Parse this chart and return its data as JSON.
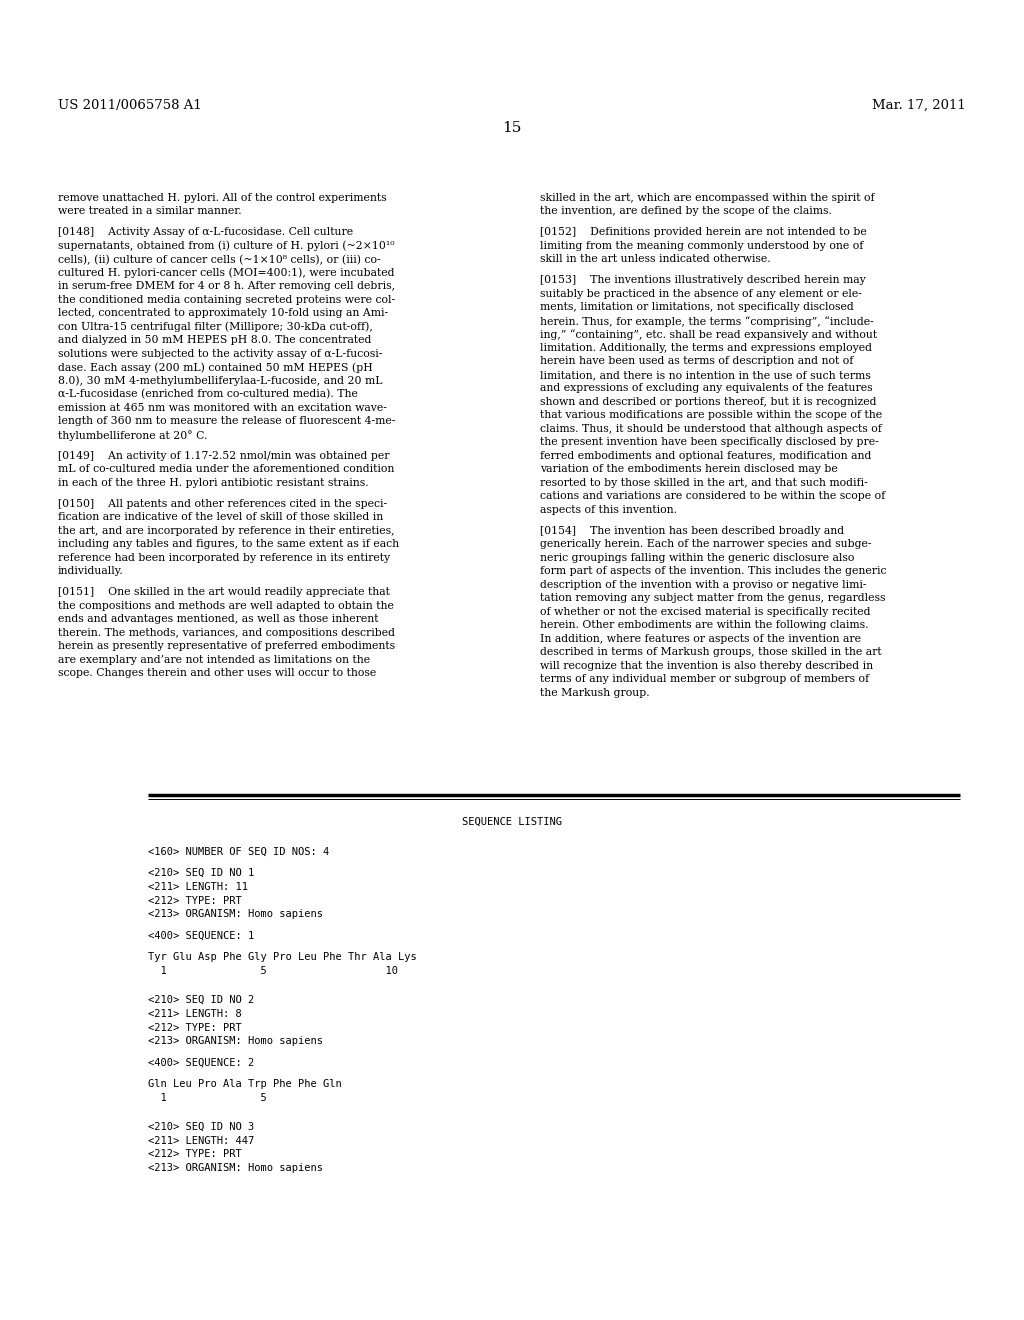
{
  "header_left": "US 2011/0065758 A1",
  "header_right": "Mar. 17, 2011",
  "page_number": "15",
  "background_color": "#ffffff",
  "text_color": "#000000",
  "body_text_left": [
    "remove unattached H. pylori. All of the control experiments",
    "were treated in a similar manner.",
    "",
    "[0148]    Activity Assay of α-L-fucosidase. Cell culture",
    "supernatants, obtained from (i) culture of H. pylori (~2×10¹⁰",
    "cells), (ii) culture of cancer cells (~1×10⁸ cells), or (iii) co-",
    "cultured H. pylori-cancer cells (MOI=400:1), were incubated",
    "in serum-free DMEM for 4 or 8 h. After removing cell debris,",
    "the conditioned media containing secreted proteins were col-",
    "lected, concentrated to approximately 10-fold using an Ami-",
    "con Ultra-15 centrifugal filter (Millipore; 30-kDa cut-off),",
    "and dialyzed in 50 mM HEPES pH 8.0. The concentrated",
    "solutions were subjected to the activity assay of α-L-fucosi-",
    "dase. Each assay (200 mL) contained 50 mM HEPES (pH",
    "8.0), 30 mM 4-methylumbelliferylaa-L-fucoside, and 20 mL",
    "α-L-fucosidase (enriched from co-cultured media). The",
    "emission at 465 nm was monitored with an excitation wave-",
    "length of 360 nm to measure the release of fluorescent 4-me-",
    "thylumbelliferone at 20° C.",
    "",
    "[0149]    An activity of 1.17-2.52 nmol/min was obtained per",
    "mL of co-cultured media under the aforementioned condition",
    "in each of the three H. pylori antibiotic resistant strains.",
    "",
    "[0150]    All patents and other references cited in the speci-",
    "fication are indicative of the level of skill of those skilled in",
    "the art, and are incorporated by reference in their entireties,",
    "including any tables and figures, to the same extent as if each",
    "reference had been incorporated by reference in its entirety",
    "individually.",
    "",
    "[0151]    One skilled in the art would readily appreciate that",
    "the compositions and methods are well adapted to obtain the",
    "ends and advantages mentioned, as well as those inherent",
    "therein. The methods, variances, and compositions described",
    "herein as presently representative of preferred embodiments",
    "are exemplary and’are not intended as limitations on the",
    "scope. Changes therein and other uses will occur to those"
  ],
  "body_text_right": [
    "skilled in the art, which are encompassed within the spirit of",
    "the invention, are defined by the scope of the claims.",
    "",
    "[0152]    Definitions provided herein are not intended to be",
    "limiting from the meaning commonly understood by one of",
    "skill in the art unless indicated otherwise.",
    "",
    "[0153]    The inventions illustratively described herein may",
    "suitably be practiced in the absence of any element or ele-",
    "ments, limitation or limitations, not specifically disclosed",
    "herein. Thus, for example, the terms “comprising”, “include-",
    "ing,” “containing”, etc. shall be read expansively and without",
    "limitation. Additionally, the terms and expressions employed",
    "herein have been used as terms of description and not of",
    "limitation, and there is no intention in the use of such terms",
    "and expressions of excluding any equivalents of the features",
    "shown and described or portions thereof, but it is recognized",
    "that various modifications are possible within the scope of the",
    "claims. Thus, it should be understood that although aspects of",
    "the present invention have been specifically disclosed by pre-",
    "ferred embodiments and optional features, modification and",
    "variation of the embodiments herein disclosed may be",
    "resorted to by those skilled in the art, and that such modifi-",
    "cations and variations are considered to be within the scope of",
    "aspects of this invention.",
    "",
    "[0154]    The invention has been described broadly and",
    "generically herein. Each of the narrower species and subge-",
    "neric groupings falling within the generic disclosure also",
    "form part of aspects of the invention. This includes the generic",
    "description of the invention with a proviso or negative limi-",
    "tation removing any subject matter from the genus, regardless",
    "of whether or not the excised material is specifically recited",
    "herein. Other embodiments are within the following claims.",
    "In addition, where features or aspects of the invention are",
    "described in terms of Markush groups, those skilled in the art",
    "will recognize that the invention is also thereby described in",
    "terms of any individual member or subgroup of members of",
    "the Markush group."
  ],
  "sequence_listing_header": "SEQUENCE LISTING",
  "sequence_listing_lines": [
    "",
    "<160> NUMBER OF SEQ ID NOS: 4",
    "",
    "<210> SEQ ID NO 1",
    "<211> LENGTH: 11",
    "<212> TYPE: PRT",
    "<213> ORGANISM: Homo sapiens",
    "",
    "<400> SEQUENCE: 1",
    "",
    "Tyr Glu Asp Phe Gly Pro Leu Phe Thr Ala Lys",
    "  1               5                   10",
    "",
    "",
    "<210> SEQ ID NO 2",
    "<211> LENGTH: 8",
    "<212> TYPE: PRT",
    "<213> ORGANISM: Homo sapiens",
    "",
    "<400> SEQUENCE: 2",
    "",
    "Gln Leu Pro Ala Trp Phe Phe Gln",
    "  1               5",
    "",
    "",
    "<210> SEQ ID NO 3",
    "<211> LENGTH: 447",
    "<212> TYPE: PRT",
    "<213> ORGANISM: Homo sapiens"
  ]
}
